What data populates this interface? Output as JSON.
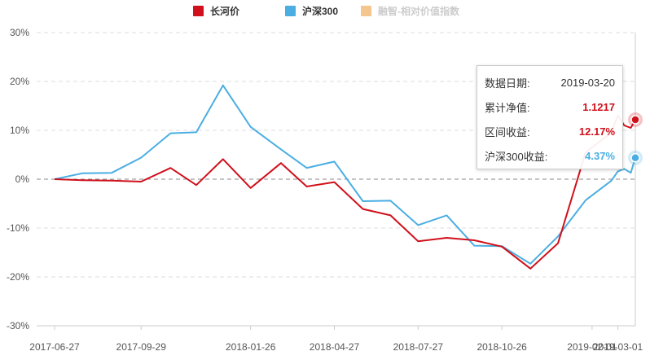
{
  "legend": [
    {
      "label": "长河价",
      "color": "#d0101b",
      "active": true
    },
    {
      "label": "沪深300",
      "color": "#4baee2",
      "active": true
    },
    {
      "label": "融智-相对价值指数",
      "color": "#f39a2b",
      "active": false
    }
  ],
  "tooltip": {
    "date_label": "数据日期:",
    "date_value": "2019-03-20",
    "nav_label": "累计净值:",
    "nav_value": "1.1217",
    "return_label": "区间收益:",
    "return_value": "12.17%",
    "index_label": "沪深300收益:",
    "index_value": "4.37%"
  },
  "chart_data": {
    "type": "line",
    "x": [
      "2017-06-27",
      "2017-07-27",
      "2017-08-28",
      "2017-09-29",
      "2017-10-31",
      "2017-11-28",
      "2017-12-27",
      "2018-01-26",
      "2018-02-28",
      "2018-03-28",
      "2018-04-27",
      "2018-05-28",
      "2018-06-27",
      "2018-07-27",
      "2018-08-27",
      "2018-09-26",
      "2018-10-26",
      "2018-11-26",
      "2018-12-26",
      "2019-01-25",
      "2019-02-22",
      "2019-03-01",
      "2019-03-08",
      "2019-03-15",
      "2019-03-20"
    ],
    "series": [
      {
        "name": "长河价",
        "color": "#d0101b",
        "values": [
          0,
          -0.2,
          -0.3,
          -0.5,
          2.3,
          -1.2,
          4.1,
          -1.8,
          3.3,
          -1.5,
          -0.6,
          -6.1,
          -7.4,
          -12.7,
          -12.0,
          -12.5,
          -13.8,
          -18.3,
          -13.1,
          5.5,
          9.5,
          13.1,
          11.0,
          10.5,
          12.17
        ]
      },
      {
        "name": "沪深300",
        "color": "#4baee2",
        "values": [
          0,
          1.2,
          1.3,
          4.4,
          9.4,
          9.6,
          19.2,
          10.7,
          6.1,
          2.3,
          3.6,
          -4.5,
          -4.4,
          -9.4,
          -7.4,
          -13.6,
          -13.7,
          -17.3,
          -11.7,
          -4.3,
          -0.3,
          1.6,
          2.1,
          1.3,
          4.37
        ]
      }
    ],
    "xticks": [
      "2017-06-27",
      "2017-09-29",
      "2018-01-26",
      "2018-04-27",
      "2018-07-27",
      "2018-10-26",
      "2019-02-01",
      "2019-03-01"
    ],
    "yticks": [
      "30%",
      "20%",
      "10%",
      "0%",
      "-10%",
      "-20%",
      "-30%"
    ],
    "ylim": [
      -30,
      30
    ],
    "grid": true,
    "legend_position": "top-center"
  }
}
